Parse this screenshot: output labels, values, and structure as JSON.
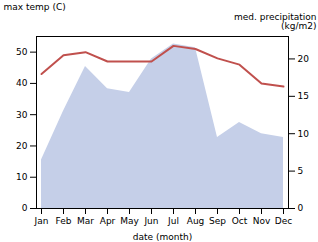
{
  "chart_data": {
    "type": "line",
    "xlabel": "date (month)",
    "ylabel": "max temp (C)",
    "y2label": "med. precipitation\n(kg/m2)",
    "categories": [
      "Jan",
      "Feb",
      "Mar",
      "Apr",
      "May",
      "Jun",
      "Jul",
      "Aug",
      "Sep",
      "Oct",
      "Nov",
      "Dec"
    ],
    "series": [
      {
        "type": "area",
        "axis": "y2",
        "color": "#c5cfe8",
        "values": [
          6.5,
          13,
          19,
          16,
          15.5,
          20,
          22,
          21.5,
          9.5,
          11.5,
          10,
          9.5
        ]
      },
      {
        "type": "line",
        "color": "#c0504d",
        "values": [
          43,
          49,
          50,
          47,
          47,
          47,
          52,
          51,
          48,
          46,
          40,
          39
        ]
      }
    ],
    "ylim": [
      0,
      55
    ],
    "yticks": [
      0,
      10,
      20,
      30,
      40,
      50
    ],
    "y2lim": [
      0,
      23
    ],
    "y2ticks": [
      0,
      5,
      10,
      15,
      20
    ]
  }
}
